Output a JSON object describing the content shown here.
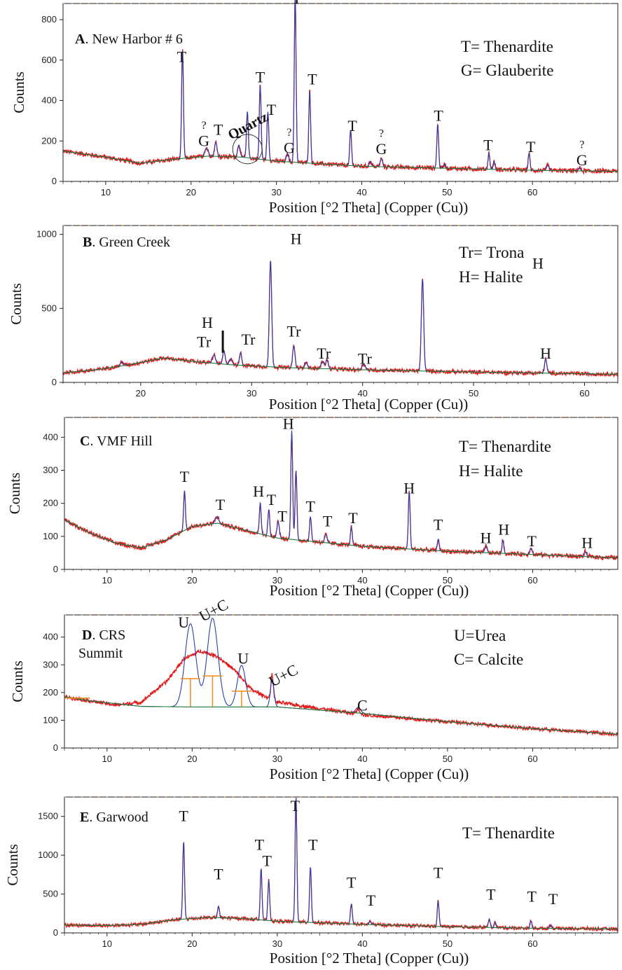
{
  "panels": [
    {
      "id": "A",
      "letter": "A",
      "name": ". New Harbor # 6",
      "legend": [
        "T= Thenardite",
        "G= Glauberite"
      ],
      "xlabel": "Position [°2 Theta] (Copper (Cu))",
      "ylabel": "Counts",
      "xlim": [
        5,
        70
      ],
      "ylim": [
        0,
        880
      ],
      "xticks": [
        10,
        20,
        30,
        40,
        50,
        60
      ],
      "yticks": [
        0,
        200,
        400,
        600,
        800
      ],
      "background": [
        [
          5,
          150
        ],
        [
          10,
          120
        ],
        [
          14,
          90
        ],
        [
          18,
          110
        ],
        [
          22,
          125
        ],
        [
          26,
          120
        ],
        [
          30,
          100
        ],
        [
          40,
          75
        ],
        [
          50,
          65
        ],
        [
          60,
          55
        ],
        [
          70,
          50
        ]
      ],
      "peaks": [
        [
          19.0,
          540,
          0.15
        ],
        [
          21.8,
          40,
          0.3
        ],
        [
          22.9,
          70,
          0.2
        ],
        [
          25.6,
          60,
          0.2
        ],
        [
          26.6,
          230,
          0.15
        ],
        [
          28.1,
          370,
          0.15
        ],
        [
          29.0,
          240,
          0.15
        ],
        [
          31.3,
          40,
          0.2
        ],
        [
          32.2,
          830,
          0.15
        ],
        [
          33.9,
          360,
          0.15
        ],
        [
          38.7,
          175,
          0.15
        ],
        [
          41.0,
          25,
          0.2
        ],
        [
          42.3,
          40,
          0.2
        ],
        [
          48.9,
          215,
          0.15
        ],
        [
          49.7,
          20,
          0.2
        ],
        [
          54.9,
          80,
          0.15
        ],
        [
          55.5,
          40,
          0.15
        ],
        [
          59.6,
          85,
          0.15
        ],
        [
          61.8,
          25,
          0.2
        ],
        [
          65.5,
          15,
          0.2
        ]
      ],
      "annotations": [
        {
          "text": "T",
          "x": 18.9,
          "y": 590
        },
        {
          "text": "?",
          "x": 21.5,
          "y": 260
        },
        {
          "text": "G",
          "x": 21.5,
          "y": 175
        },
        {
          "text": "T",
          "x": 23.2,
          "y": 230
        },
        {
          "text": "T",
          "x": 28.1,
          "y": 490
        },
        {
          "text": "T",
          "x": 29.4,
          "y": 330
        },
        {
          "text": "?",
          "x": 31.5,
          "y": 225
        },
        {
          "text": "G",
          "x": 31.5,
          "y": 140
        },
        {
          "text": "T",
          "x": 32.4,
          "y": 880
        },
        {
          "text": "T",
          "x": 34.2,
          "y": 480
        },
        {
          "text": "T",
          "x": 38.9,
          "y": 250
        },
        {
          "text": "?",
          "x": 42.3,
          "y": 220
        },
        {
          "text": "G",
          "x": 42.3,
          "y": 135
        },
        {
          "text": "T",
          "x": 49.0,
          "y": 300
        },
        {
          "text": "T",
          "x": 54.8,
          "y": 155
        },
        {
          "text": "T",
          "x": 59.8,
          "y": 145
        },
        {
          "text": "?",
          "x": 65.8,
          "y": 165
        },
        {
          "text": "G",
          "x": 65.8,
          "y": 80
        }
      ],
      "special_label": "Quartz"
    },
    {
      "id": "B",
      "letter": "B",
      "name": ". Green Creek",
      "legend": [
        "Tr= Trona",
        "H= Halite"
      ],
      "xlabel": "Position [°2 Theta] (Copper (Cu))",
      "ylabel": "Counts",
      "xlim": [
        13,
        63
      ],
      "ylim": [
        0,
        1060
      ],
      "xticks": [
        20,
        30,
        40,
        50,
        60
      ],
      "yticks": [
        0,
        500,
        1000
      ],
      "background": [
        [
          13,
          65
        ],
        [
          16,
          85
        ],
        [
          19,
          120
        ],
        [
          22,
          165
        ],
        [
          25,
          140
        ],
        [
          28,
          120
        ],
        [
          33,
          100
        ],
        [
          40,
          85
        ],
        [
          50,
          70
        ],
        [
          63,
          55
        ]
      ],
      "peaks": [
        [
          18.3,
          25,
          0.2
        ],
        [
          26.6,
          55,
          0.2
        ],
        [
          27.5,
          90,
          0.15
        ],
        [
          28.1,
          40,
          0.2
        ],
        [
          29.0,
          85,
          0.15
        ],
        [
          31.7,
          720,
          0.15
        ],
        [
          33.8,
          150,
          0.15
        ],
        [
          34.9,
          40,
          0.2
        ],
        [
          36.4,
          50,
          0.2
        ],
        [
          36.8,
          60,
          0.15
        ],
        [
          40.1,
          40,
          0.2
        ],
        [
          45.4,
          620,
          0.15
        ],
        [
          56.5,
          95,
          0.15
        ]
      ],
      "annotations": [
        {
          "text": "H",
          "x": 34.0,
          "y": 935
        },
        {
          "text": "H",
          "x": 55.8,
          "y": 770
        },
        {
          "text": "H",
          "x": 26.0,
          "y": 370
        },
        {
          "text": "Tr",
          "x": 25.7,
          "y": 240
        },
        {
          "text": "Tr",
          "x": 29.7,
          "y": 255
        },
        {
          "text": "Tr",
          "x": 33.8,
          "y": 310
        },
        {
          "text": "Tr",
          "x": 36.5,
          "y": 160
        },
        {
          "text": "Tr",
          "x": 40.2,
          "y": 125
        },
        {
          "text": "H",
          "x": 56.5,
          "y": 160
        }
      ],
      "special_label": ""
    },
    {
      "id": "C",
      "letter": "C",
      "name": ". VMF Hill",
      "legend": [
        "T= Thenardite",
        "H= Halite"
      ],
      "xlabel": "Position [°2 Theta] (Copper (Cu))",
      "ylabel": "Counts",
      "xlim": [
        5,
        70
      ],
      "ylim": [
        0,
        460
      ],
      "xticks": [
        10,
        20,
        30,
        40,
        50,
        60
      ],
      "yticks": [
        0,
        100,
        200,
        300,
        400
      ],
      "background": [
        [
          5,
          150
        ],
        [
          8,
          110
        ],
        [
          11,
          80
        ],
        [
          14,
          65
        ],
        [
          17,
          90
        ],
        [
          20,
          130
        ],
        [
          23,
          140
        ],
        [
          26,
          120
        ],
        [
          30,
          95
        ],
        [
          40,
          70
        ],
        [
          50,
          55
        ],
        [
          60,
          45
        ],
        [
          70,
          35
        ]
      ],
      "peaks": [
        [
          19.1,
          120,
          0.15
        ],
        [
          22.9,
          20,
          0.3
        ],
        [
          28.0,
          95,
          0.15
        ],
        [
          29.0,
          80,
          0.15
        ],
        [
          30.1,
          50,
          0.2
        ],
        [
          31.7,
          330,
          0.15
        ],
        [
          32.2,
          210,
          0.15
        ],
        [
          33.9,
          75,
          0.15
        ],
        [
          35.7,
          25,
          0.2
        ],
        [
          38.7,
          55,
          0.15
        ],
        [
          45.5,
          175,
          0.15
        ],
        [
          48.9,
          35,
          0.15
        ],
        [
          54.5,
          20,
          0.2
        ],
        [
          56.5,
          40,
          0.15
        ],
        [
          59.8,
          20,
          0.2
        ],
        [
          66.2,
          15,
          0.2
        ]
      ],
      "annotations": [
        {
          "text": "T",
          "x": 19.1,
          "y": 265
        },
        {
          "text": "T",
          "x": 23.3,
          "y": 180
        },
        {
          "text": "H",
          "x": 27.8,
          "y": 220
        },
        {
          "text": "T",
          "x": 29.3,
          "y": 195
        },
        {
          "text": "T",
          "x": 30.6,
          "y": 145
        },
        {
          "text": "H",
          "x": 31.3,
          "y": 425
        },
        {
          "text": "T",
          "x": 33.9,
          "y": 175
        },
        {
          "text": "T",
          "x": 35.9,
          "y": 130
        },
        {
          "text": "T",
          "x": 38.9,
          "y": 140
        },
        {
          "text": "H",
          "x": 45.5,
          "y": 230
        },
        {
          "text": "T",
          "x": 48.9,
          "y": 120
        },
        {
          "text": "H",
          "x": 54.5,
          "y": 80
        },
        {
          "text": "H",
          "x": 56.6,
          "y": 105
        },
        {
          "text": "T",
          "x": 59.9,
          "y": 70
        },
        {
          "text": "H",
          "x": 66.4,
          "y": 65
        }
      ],
      "special_label": ""
    },
    {
      "id": "D",
      "letter": "D",
      "name": ". CRS",
      "name2": "Summit",
      "legend": [
        "U=Urea",
        "C= Calcite"
      ],
      "xlabel": "Position [°2 Theta] (Copper (Cu))",
      "ylabel": "Counts",
      "xlim": [
        5,
        70
      ],
      "ylim": [
        0,
        480
      ],
      "xticks": [
        10,
        20,
        30,
        40,
        50,
        60
      ],
      "yticks": [
        0,
        100,
        200,
        300,
        400
      ],
      "background": [
        [
          5,
          185
        ],
        [
          8,
          170
        ],
        [
          11,
          155
        ],
        [
          14,
          165
        ],
        [
          17,
          240
        ],
        [
          19,
          320
        ],
        [
          21,
          350
        ],
        [
          23,
          330
        ],
        [
          25,
          280
        ],
        [
          27,
          210
        ],
        [
          30,
          165
        ],
        [
          40,
          120
        ],
        [
          50,
          95
        ],
        [
          60,
          70
        ],
        [
          70,
          50
        ]
      ],
      "peaks": [
        [
          29.4,
          90,
          0.2
        ],
        [
          39.5,
          20,
          0.3
        ]
      ],
      "annotations": [
        {
          "text": "U",
          "x": 19.0,
          "y": 435
        },
        {
          "text": "U",
          "x": 26.0,
          "y": 305
        },
        {
          "text": "C",
          "x": 40.0,
          "y": 135
        }
      ],
      "rotated_annotations": [
        {
          "text": "U+C",
          "x": 22.8,
          "y": 480
        },
        {
          "text": "U+C",
          "x": 31.0,
          "y": 245
        }
      ],
      "special_label": ""
    },
    {
      "id": "E",
      "letter": "E",
      "name": ". Garwood",
      "legend": [
        "T= Thenardite"
      ],
      "xlabel": "Position [°2 Theta] (Copper (Cu))",
      "ylabel": "Counts",
      "xlim": [
        5,
        70
      ],
      "ylim": [
        0,
        1750
      ],
      "xticks": [
        10,
        20,
        30,
        40,
        50,
        60
      ],
      "yticks": [
        0,
        500,
        1000,
        1500
      ],
      "background": [
        [
          5,
          100
        ],
        [
          10,
          95
        ],
        [
          14,
          110
        ],
        [
          18,
          170
        ],
        [
          22,
          200
        ],
        [
          26,
          185
        ],
        [
          30,
          150
        ],
        [
          40,
          110
        ],
        [
          50,
          80
        ],
        [
          60,
          60
        ],
        [
          70,
          50
        ]
      ],
      "peaks": [
        [
          19.0,
          1000,
          0.15
        ],
        [
          23.1,
          150,
          0.15
        ],
        [
          28.1,
          660,
          0.15
        ],
        [
          29.0,
          520,
          0.15
        ],
        [
          32.2,
          1600,
          0.15
        ],
        [
          33.9,
          720,
          0.15
        ],
        [
          38.7,
          260,
          0.15
        ],
        [
          40.9,
          40,
          0.2
        ],
        [
          48.9,
          330,
          0.15
        ],
        [
          54.9,
          110,
          0.15
        ],
        [
          55.6,
          70,
          0.15
        ],
        [
          59.8,
          95,
          0.15
        ],
        [
          62.1,
          45,
          0.2
        ]
      ],
      "annotations": [
        {
          "text": "T",
          "x": 19.0,
          "y": 1440
        },
        {
          "text": "T",
          "x": 23.1,
          "y": 690
        },
        {
          "text": "T",
          "x": 27.9,
          "y": 1070
        },
        {
          "text": "T",
          "x": 28.8,
          "y": 860
        },
        {
          "text": "T",
          "x": 32.1,
          "y": 1570
        },
        {
          "text": "T",
          "x": 34.2,
          "y": 1070
        },
        {
          "text": "T",
          "x": 38.7,
          "y": 580
        },
        {
          "text": "T",
          "x": 41.0,
          "y": 350
        },
        {
          "text": "T",
          "x": 48.9,
          "y": 710
        },
        {
          "text": "T",
          "x": 55.1,
          "y": 430
        },
        {
          "text": "T",
          "x": 59.9,
          "y": 400
        },
        {
          "text": "T",
          "x": 62.4,
          "y": 370
        }
      ],
      "special_label": ""
    }
  ],
  "chart_data": [
    {
      "type": "line",
      "title": "A. New Harbor # 6",
      "xlabel": "Position [°2 Theta] (Copper (Cu))",
      "ylabel": "Counts",
      "xlim": [
        5,
        70
      ],
      "ylim": [
        0,
        880
      ],
      "grid": false,
      "legend_placement": "top-right",
      "series": [
        {
          "name": "T= Thenardite"
        },
        {
          "name": "G= Glauberite"
        }
      ]
    },
    {
      "type": "line",
      "title": "B. Green Creek",
      "xlabel": "Position [°2 Theta] (Copper (Cu))",
      "ylabel": "Counts",
      "xlim": [
        13,
        63
      ],
      "ylim": [
        0,
        1060
      ],
      "grid": false,
      "legend_placement": "top-right",
      "series": [
        {
          "name": "Tr= Trona"
        },
        {
          "name": "H= Halite"
        }
      ]
    },
    {
      "type": "line",
      "title": "C. VMF Hill",
      "xlabel": "Position [°2 Theta] (Copper (Cu))",
      "ylabel": "Counts",
      "xlim": [
        5,
        70
      ],
      "ylim": [
        0,
        460
      ],
      "grid": false,
      "legend_placement": "top-right",
      "series": [
        {
          "name": "T= Thenardite"
        },
        {
          "name": "H= Halite"
        }
      ]
    },
    {
      "type": "line",
      "title": "D. CRS Summit",
      "xlabel": "Position [°2 Theta] (Copper (Cu))",
      "ylabel": "Counts",
      "xlim": [
        5,
        70
      ],
      "ylim": [
        0,
        480
      ],
      "grid": false,
      "legend_placement": "top-right",
      "series": [
        {
          "name": "U=Urea"
        },
        {
          "name": "C= Calcite"
        }
      ]
    },
    {
      "type": "line",
      "title": "E. Garwood",
      "xlabel": "Position [°2 Theta] (Copper (Cu))",
      "ylabel": "Counts",
      "xlim": [
        5,
        70
      ],
      "ylim": [
        0,
        1750
      ],
      "grid": false,
      "legend_placement": "top-right",
      "series": [
        {
          "name": "T= Thenardite"
        }
      ]
    }
  ],
  "colors": {
    "measured": "#e01b1b",
    "fit": "#2c3fb0",
    "background": "#1f7a3a",
    "marker": "#f08a1c",
    "axis": "#222222"
  }
}
